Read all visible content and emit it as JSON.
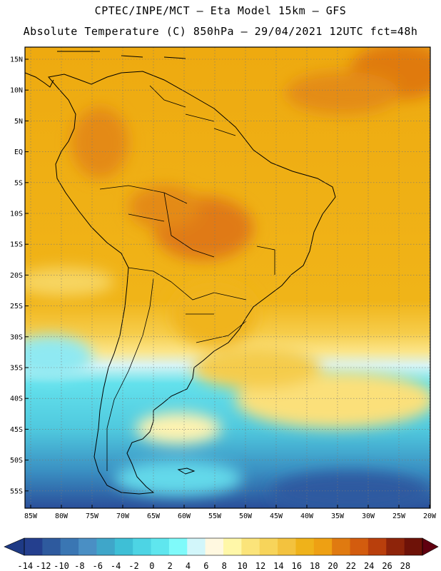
{
  "title": {
    "line1": "CPTEC/INPE/MCT –  Eta Model 15km – GFS",
    "line2": "Absolute Temperature (C) 850hPa – 29/04/2021 12UTC fct=48h"
  },
  "lat_labels": [
    "15N",
    "10N",
    "5N",
    "EQ",
    "5S",
    "10S",
    "15S",
    "20S",
    "25S",
    "30S",
    "35S",
    "40S",
    "45S",
    "50S",
    "55S"
  ],
  "lon_labels": [
    "85W",
    "80W",
    "75W",
    "70W",
    "65W",
    "60W",
    "55W",
    "50W",
    "45W",
    "40W",
    "35W",
    "30W",
    "25W",
    "20W"
  ],
  "colorbar": {
    "ticks": [
      "-14",
      "-12",
      "-10",
      "-8",
      "-6",
      "-4",
      "-2",
      "0",
      "2",
      "4",
      "6",
      "8",
      "10",
      "12",
      "14",
      "16",
      "18",
      "20",
      "22",
      "24",
      "26",
      "28"
    ],
    "colors": [
      "#243f8e",
      "#2e5a9e",
      "#3a76b3",
      "#4a8fc4",
      "#3fa6c9",
      "#3ebfd6",
      "#4dd4e4",
      "#5fe6ee",
      "#7ffafa",
      "#d2f6fa",
      "#fff8e0",
      "#fff7a8",
      "#fbe47a",
      "#f7d45a",
      "#f3c23e",
      "#efb21a",
      "#eea013",
      "#e07a10",
      "#d35c0e",
      "#b93f0c",
      "#8e240a",
      "#6e1208"
    ],
    "under_color": "#1e3a85",
    "over_color": "#600010"
  }
}
